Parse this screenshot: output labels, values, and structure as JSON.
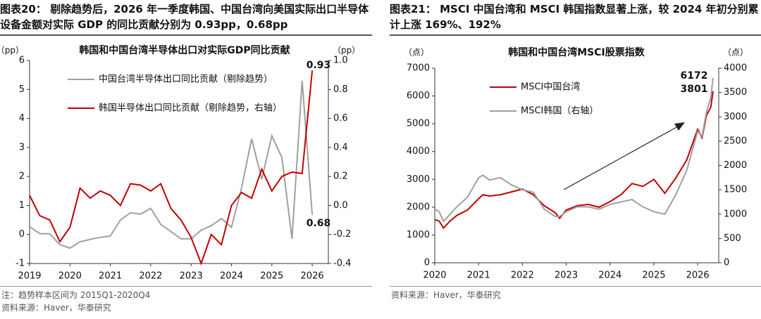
{
  "chart_data": [
    {
      "type": "line",
      "figure_title": "图表20：  剔除趋势后，2026 年一季度韩国、中国台湾向美国实际出口半导体设备金额对实际 GDP 的同比贡献分别为 0.93pp，0.68pp",
      "title": "韩国和中国台湾半导体出口对实际GDP同比贡献",
      "y_unit": "（pp）",
      "y2_unit": "（pp）",
      "x": [
        2019.0,
        2019.25,
        2019.5,
        2019.75,
        2020.0,
        2020.25,
        2020.5,
        2020.75,
        2021.0,
        2021.25,
        2021.5,
        2021.75,
        2022.0,
        2022.25,
        2022.5,
        2022.75,
        2023.0,
        2023.25,
        2023.5,
        2023.75,
        2024.0,
        2024.25,
        2024.5,
        2024.75,
        2025.0,
        2025.25,
        2025.5,
        2025.75,
        2026.0
      ],
      "xlim": [
        2019,
        2026.4
      ],
      "xticks": [
        2019,
        2020,
        2021,
        2022,
        2023,
        2024,
        2025,
        2026
      ],
      "ylim": [
        -1,
        6
      ],
      "yticks": [
        -1,
        0,
        1,
        2,
        3,
        4,
        5,
        6
      ],
      "y2lim": [
        -0.4,
        1.0
      ],
      "y2ticks": [
        -0.4,
        -0.2,
        {
          "value": 0,
          "label": "0.0"
        },
        0.2,
        0.4,
        0.6,
        0.8,
        {
          "value": 1,
          "label": "1.0"
        }
      ],
      "legend": "upper left",
      "series": [
        {
          "name": "中国台湾半导体出口同比贡献（剔除趋势）",
          "color": "#a0a0a0",
          "axis": "y",
          "values": [
            0.27,
            0.03,
            0.02,
            -0.35,
            -0.47,
            -0.25,
            -0.17,
            -0.1,
            -0.05,
            0.5,
            0.75,
            0.7,
            0.9,
            0.35,
            0.1,
            -0.15,
            -0.15,
            0.15,
            0.3,
            0.55,
            0.25,
            1.6,
            3.3,
            1.9,
            3.4,
            2.65,
            -0.15,
            5.3,
            0.68
          ]
        },
        {
          "name": "韩国半导体出口同比贡献（剔除趋势，右轴）",
          "color": "#c00000",
          "axis": "y2",
          "values": [
            0.07,
            -0.07,
            -0.1,
            -0.25,
            -0.15,
            0.12,
            0.05,
            0.1,
            0.07,
            0.0,
            0.15,
            0.14,
            0.1,
            0.15,
            -0.02,
            -0.1,
            -0.22,
            -0.4,
            -0.2,
            -0.27,
            0.0,
            0.09,
            0.05,
            0.25,
            0.1,
            0.2,
            0.23,
            0.22,
            0.93
          ]
        }
      ],
      "annotations": [
        {
          "text": "0.93",
          "color": "#c00000"
        },
        {
          "text": "0.68",
          "color": "#a0a0a0"
        }
      ],
      "note": "注：趋势样本区间为 2015Q1-2020Q4",
      "source": "资料来源：Haver，华泰研究"
    },
    {
      "type": "line",
      "figure_title": "图表21：  MSCI 中国台湾和 MSCI 韩国指数显著上涨，较 2024 年初分别累计上涨 169%、192%",
      "title": "韩国和中国台湾MSCI股票指数",
      "y_unit": "（点）",
      "y2_unit": "（点）",
      "x": [
        2020.0,
        2020.1,
        2020.2,
        2020.35,
        2020.5,
        2020.75,
        2021.0,
        2021.1,
        2021.25,
        2021.5,
        2021.75,
        2022.0,
        2022.25,
        2022.5,
        2022.75,
        2022.85,
        2023.0,
        2023.25,
        2023.5,
        2023.75,
        2024.0,
        2024.25,
        2024.5,
        2024.75,
        2025.0,
        2025.25,
        2025.5,
        2025.75,
        2026.0,
        2026.1,
        2026.2,
        2026.3,
        2026.35
      ],
      "xlim": [
        2020,
        2026.48
      ],
      "xticks": [
        2020,
        2021,
        2022,
        2023,
        2024,
        2025,
        2026
      ],
      "ylim": [
        0,
        7000
      ],
      "yticks": [
        0,
        1000,
        2000,
        3000,
        4000,
        5000,
        6000,
        7000
      ],
      "y2lim": [
        0,
        4000
      ],
      "y2ticks": [
        0,
        500,
        1000,
        1500,
        2000,
        2500,
        3000,
        3500,
        4000
      ],
      "legend": "upper left",
      "series": [
        {
          "name": "MSCI中国台湾",
          "color": "#c00000",
          "axis": "y",
          "values": [
            1550,
            1500,
            1250,
            1500,
            1700,
            1900,
            2300,
            2450,
            2400,
            2450,
            2550,
            2650,
            2450,
            2050,
            1800,
            1600,
            1900,
            2050,
            2100,
            2000,
            2200,
            2450,
            2850,
            2750,
            3000,
            2500,
            3050,
            3700,
            4800,
            4500,
            5300,
            5600,
            6172
          ]
        },
        {
          "name": "MSCI韩国（右轴）",
          "color": "#a0a0a0",
          "axis": "y2",
          "values": [
            1100,
            1050,
            850,
            1000,
            1150,
            1350,
            1750,
            1800,
            1700,
            1750,
            1600,
            1500,
            1450,
            1100,
            950,
            950,
            1050,
            1150,
            1150,
            1100,
            1200,
            1250,
            1300,
            1150,
            1050,
            1000,
            1400,
            1900,
            2700,
            2600,
            3100,
            3400,
            3801
          ]
        }
      ],
      "annotations": [
        {
          "text": "6172",
          "color": "#c00000"
        },
        {
          "text": "3801",
          "color": "#a0a0a0"
        }
      ],
      "source": "资料来源：Haver，华泰研究"
    }
  ]
}
